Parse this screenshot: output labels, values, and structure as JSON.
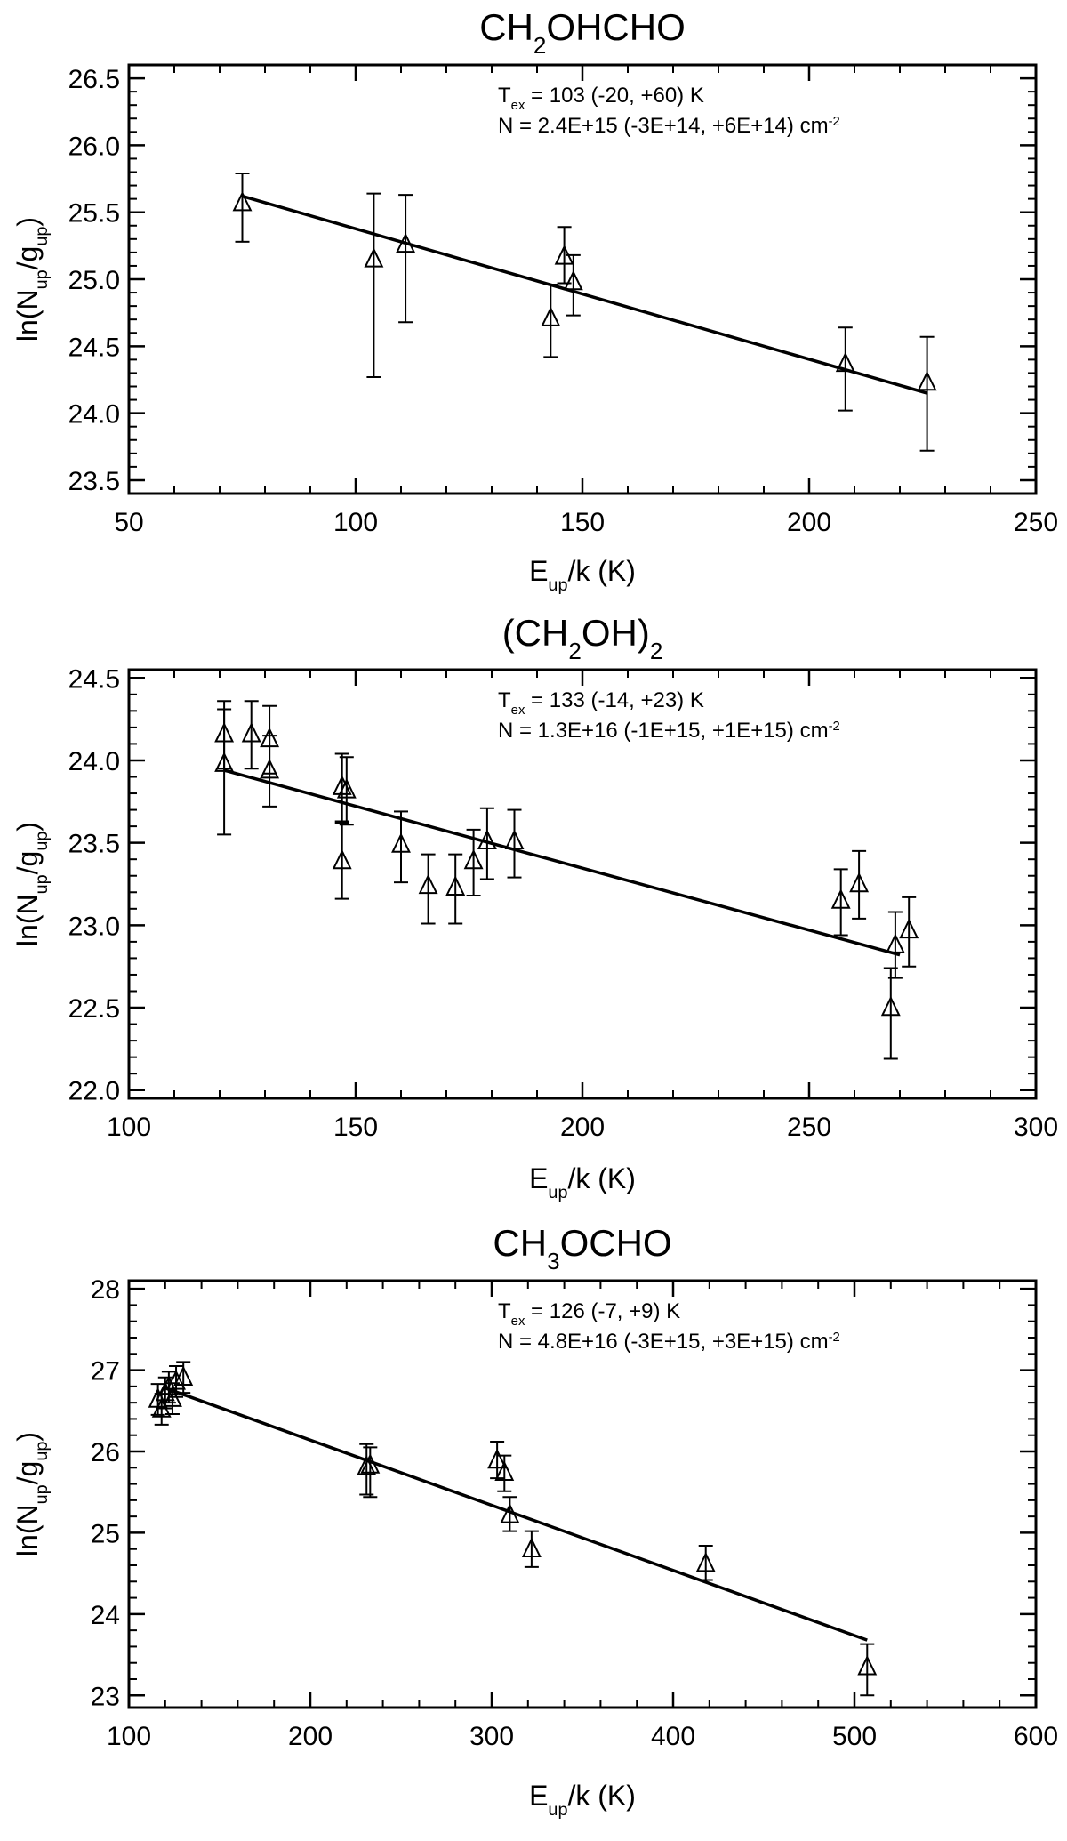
{
  "figure": {
    "ylabel": {
      "base": "ln(N",
      "sub1": "up",
      "mid": "/g",
      "sub2": "up",
      "end": ")"
    },
    "xlabel": {
      "base": "E",
      "sub": "up",
      "end": "/k (K)"
    }
  },
  "chart_data": [
    {
      "type": "scatter",
      "title": {
        "pre": "CH",
        "sub": "2",
        "post": "OHCHO"
      },
      "annotation": {
        "line1": {
          "pre": "T",
          "sub": "ex",
          "post": " = 103 (-20, +60) K"
        },
        "line2": {
          "pre": "N = 2.4E+15 (-3E+14, +6E+14) cm",
          "sup": "-2"
        }
      },
      "xlim": [
        50,
        250
      ],
      "ylim": [
        23.4,
        26.6
      ],
      "xticks": [
        50,
        100,
        150,
        200,
        250
      ],
      "xtick_labels": [
        "50",
        "100",
        "150",
        "200",
        "250"
      ],
      "yticks": [
        23.5,
        24.0,
        24.5,
        25.0,
        25.5,
        26.0,
        26.5
      ],
      "ytick_labels": [
        "23.5",
        "24.0",
        "24.5",
        "25.0",
        "25.5",
        "26.0",
        "26.5"
      ],
      "series": [
        {
          "points": [
            {
              "x": 75,
              "y": 25.57,
              "lo": 25.28,
              "hi": 25.79
            },
            {
              "x": 104,
              "y": 25.15,
              "lo": 24.27,
              "hi": 25.64
            },
            {
              "x": 111,
              "y": 25.26,
              "lo": 24.68,
              "hi": 25.63
            },
            {
              "x": 143,
              "y": 24.71,
              "lo": 24.42,
              "hi": 24.96
            },
            {
              "x": 146,
              "y": 25.17,
              "lo": 24.97,
              "hi": 25.39
            },
            {
              "x": 148,
              "y": 24.98,
              "lo": 24.73,
              "hi": 25.18
            },
            {
              "x": 208,
              "y": 24.37,
              "lo": 24.02,
              "hi": 24.64
            },
            {
              "x": 226,
              "y": 24.23,
              "lo": 23.72,
              "hi": 24.57
            }
          ],
          "fit": {
            "x": [
              75,
              226
            ],
            "y": [
              25.62,
              24.15
            ]
          }
        }
      ]
    },
    {
      "type": "scatter",
      "title": {
        "pre": "(CH",
        "sub": "2",
        "post": "OH)",
        "sub2": "2"
      },
      "annotation": {
        "line1": {
          "pre": "T",
          "sub": "ex",
          "post": " = 133 (-14, +23) K"
        },
        "line2": {
          "pre": "N = 1.3E+16 (-1E+15, +1E+15) cm",
          "sup": "-2"
        }
      },
      "xlim": [
        100,
        300
      ],
      "ylim": [
        21.95,
        24.55
      ],
      "xticks": [
        100,
        150,
        200,
        250,
        300
      ],
      "xtick_labels": [
        "100",
        "150",
        "200",
        "250",
        "300"
      ],
      "yticks": [
        22.0,
        22.5,
        23.0,
        23.5,
        24.0,
        24.5
      ],
      "ytick_labels": [
        "22.0",
        "22.5",
        "23.0",
        "23.5",
        "24.0",
        "24.5"
      ],
      "series": [
        {
          "points": [
            {
              "x": 121,
              "y": 24.16,
              "lo": 23.95,
              "hi": 24.36
            },
            {
              "x": 121,
              "y": 23.98,
              "lo": 23.55,
              "hi": 24.31
            },
            {
              "x": 127,
              "y": 24.16,
              "lo": 23.95,
              "hi": 24.36
            },
            {
              "x": 131,
              "y": 24.13,
              "lo": 23.92,
              "hi": 24.33
            },
            {
              "x": 131,
              "y": 23.94,
              "lo": 23.72,
              "hi": 24.15
            },
            {
              "x": 147,
              "y": 23.84,
              "lo": 23.63,
              "hi": 24.04
            },
            {
              "x": 147,
              "y": 23.39,
              "lo": 23.16,
              "hi": 23.62
            },
            {
              "x": 148,
              "y": 23.82,
              "lo": 23.61,
              "hi": 24.02
            },
            {
              "x": 160,
              "y": 23.49,
              "lo": 23.26,
              "hi": 23.69
            },
            {
              "x": 166,
              "y": 23.24,
              "lo": 23.01,
              "hi": 23.43
            },
            {
              "x": 172,
              "y": 23.23,
              "lo": 23.01,
              "hi": 23.43
            },
            {
              "x": 176,
              "y": 23.39,
              "lo": 23.18,
              "hi": 23.58
            },
            {
              "x": 179,
              "y": 23.51,
              "lo": 23.28,
              "hi": 23.71
            },
            {
              "x": 185,
              "y": 23.51,
              "lo": 23.29,
              "hi": 23.7
            },
            {
              "x": 257,
              "y": 23.15,
              "lo": 22.94,
              "hi": 23.34
            },
            {
              "x": 261,
              "y": 23.25,
              "lo": 23.04,
              "hi": 23.45
            },
            {
              "x": 268,
              "y": 22.5,
              "lo": 22.19,
              "hi": 22.74
            },
            {
              "x": 269,
              "y": 22.88,
              "lo": 22.68,
              "hi": 23.08
            },
            {
              "x": 272,
              "y": 22.97,
              "lo": 22.75,
              "hi": 23.17
            }
          ],
          "fit": {
            "x": [
              121,
              270
            ],
            "y": [
              23.94,
              22.82
            ]
          }
        }
      ]
    },
    {
      "type": "scatter",
      "title": {
        "pre": "CH",
        "sub": "3",
        "post": "OCHO"
      },
      "annotation": {
        "line1": {
          "pre": "T",
          "sub": "ex",
          "post": " = 126 (-7, +9) K"
        },
        "line2": {
          "pre": "N = 4.8E+16 (-3E+15, +3E+15) cm",
          "sup": "-2"
        }
      },
      "xlim": [
        100,
        600
      ],
      "ylim": [
        22.85,
        28.1
      ],
      "xticks": [
        100,
        200,
        300,
        400,
        500,
        600
      ],
      "xtick_labels": [
        "100",
        "200",
        "300",
        "400",
        "500",
        "600"
      ],
      "yticks": [
        23,
        24,
        25,
        26,
        27,
        28
      ],
      "ytick_labels": [
        "23",
        "24",
        "25",
        "26",
        "27",
        "28"
      ],
      "series": [
        {
          "points": [
            {
              "x": 116,
              "y": 26.64,
              "lo": 26.45,
              "hi": 26.83
            },
            {
              "x": 118,
              "y": 26.52,
              "lo": 26.33,
              "hi": 26.71
            },
            {
              "x": 120,
              "y": 26.72,
              "lo": 26.53,
              "hi": 26.91
            },
            {
              "x": 122,
              "y": 26.79,
              "lo": 26.6,
              "hi": 26.98
            },
            {
              "x": 124,
              "y": 26.65,
              "lo": 26.46,
              "hi": 26.84
            },
            {
              "x": 126,
              "y": 26.86,
              "lo": 26.67,
              "hi": 27.05
            },
            {
              "x": 130,
              "y": 26.91,
              "lo": 26.72,
              "hi": 27.1
            },
            {
              "x": 231,
              "y": 25.81,
              "lo": 25.47,
              "hi": 26.09
            },
            {
              "x": 233,
              "y": 25.83,
              "lo": 25.44,
              "hi": 26.05
            },
            {
              "x": 303,
              "y": 25.89,
              "lo": 25.67,
              "hi": 26.12
            },
            {
              "x": 307,
              "y": 25.74,
              "lo": 25.51,
              "hi": 25.95
            },
            {
              "x": 310,
              "y": 25.22,
              "lo": 25.02,
              "hi": 25.44
            },
            {
              "x": 322,
              "y": 24.8,
              "lo": 24.58,
              "hi": 25.02
            },
            {
              "x": 418,
              "y": 24.62,
              "lo": 24.42,
              "hi": 24.84
            },
            {
              "x": 507,
              "y": 23.35,
              "lo": 23.0,
              "hi": 23.63
            }
          ],
          "fit": {
            "x": [
              120,
              507
            ],
            "y": [
              26.78,
              23.68
            ]
          }
        }
      ]
    }
  ]
}
